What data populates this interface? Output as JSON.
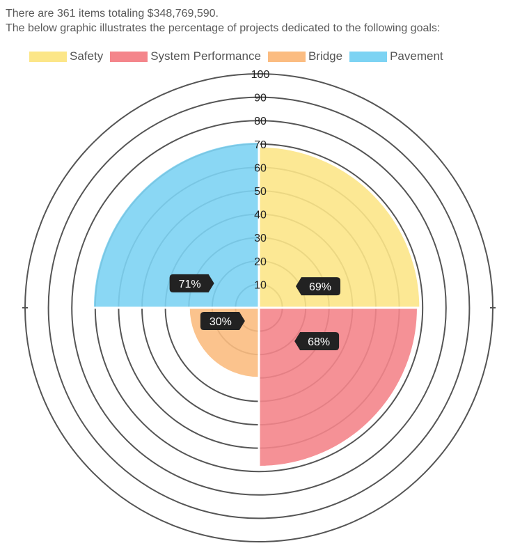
{
  "header": {
    "summary": "There are 361 items totaling $348,769,590.",
    "description": "The below graphic illustrates the percentage of projects dedicated to the following goals:"
  },
  "colors": {
    "ring": "#555555",
    "badge": "#222222"
  },
  "chart_data": {
    "type": "polar-area",
    "rlim": [
      0,
      100
    ],
    "ticks": [
      10,
      20,
      30,
      40,
      50,
      60,
      70,
      80,
      90,
      100
    ],
    "tick_labels": [
      "10",
      "20",
      "30",
      "40",
      "50",
      "60",
      "70",
      "80",
      "90",
      "100"
    ],
    "legend_position": "top",
    "segments": [
      {
        "name": "Safety",
        "value": 69,
        "label": "69%",
        "quadrant": "top-right",
        "color": "#fce688"
      },
      {
        "name": "System Performance",
        "value": 68,
        "label": "68%",
        "quadrant": "bottom-right",
        "color": "#f4858b"
      },
      {
        "name": "Bridge",
        "value": 30,
        "label": "30%",
        "quadrant": "bottom-left",
        "color": "#fbbc81"
      },
      {
        "name": "Pavement",
        "value": 71,
        "label": "71%",
        "quadrant": "top-left",
        "color": "#7dd3f3"
      }
    ]
  }
}
